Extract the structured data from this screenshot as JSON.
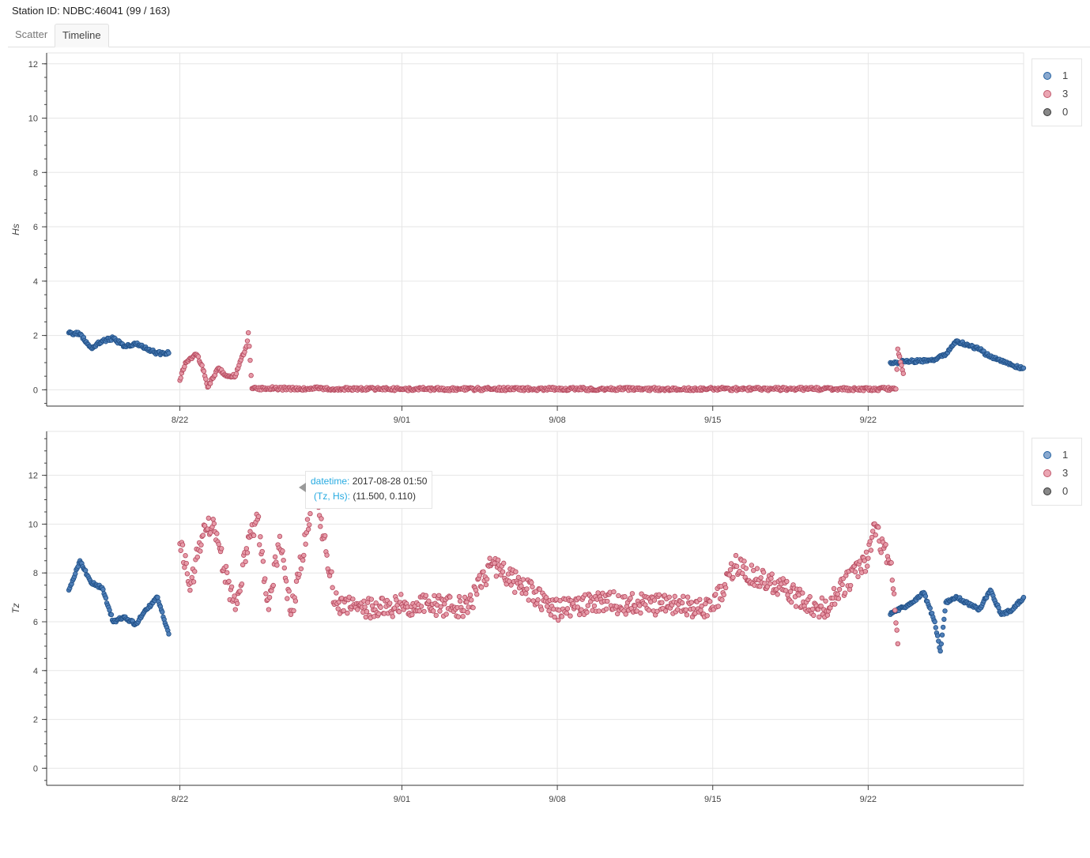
{
  "header": {
    "station_label": "Station ID: NDBC:46041 (99 / 163)"
  },
  "tabs": [
    {
      "label": "Scatter",
      "active": false
    },
    {
      "label": "Timeline",
      "active": true
    }
  ],
  "colors": {
    "flag_1": "#1f5fa0",
    "flag_3": "#c0566a",
    "flag_0": "#555555",
    "grid": "#e6e6e6"
  },
  "legend": [
    {
      "label": "1",
      "color": "#8aa9cf"
    },
    {
      "label": "3",
      "color": "#eba6b3"
    },
    {
      "label": "0",
      "color": "#888888"
    }
  ],
  "tooltip": {
    "datetime_key": "datetime:",
    "datetime_value": "2017-08-28 01:50",
    "pair_key": "(Tz, Hs):",
    "pair_value": "(11.500, 0.110)"
  },
  "chart_data": [
    {
      "type": "scatter",
      "ylabel": "Hs",
      "x_range": [
        "2017-08-16",
        "2017-09-29"
      ],
      "ylim": [
        -0.6,
        12.4
      ],
      "yticks": [
        0,
        2,
        4,
        6,
        8,
        10,
        12
      ],
      "xticks": [
        {
          "date": "2017-08-22",
          "label": "8/22"
        },
        {
          "date": "2017-09-01",
          "label": "9/01"
        },
        {
          "date": "2017-09-08",
          "label": "9/08"
        },
        {
          "date": "2017-09-15",
          "label": "9/15"
        },
        {
          "date": "2017-09-22",
          "label": "9/22"
        }
      ],
      "grid": true,
      "legend_position": "right",
      "series": [
        {
          "name": "1",
          "points": [
            [
              "2017-08-17",
              2.1
            ],
            [
              "2017-08-17T12:00",
              2.05
            ],
            [
              "2017-08-18",
              1.55
            ],
            [
              "2017-08-18T12:00",
              1.8
            ],
            [
              "2017-08-19",
              1.9
            ],
            [
              "2017-08-19T12:00",
              1.6
            ],
            [
              "2017-08-20",
              1.7
            ],
            [
              "2017-08-20T12:00",
              1.5
            ],
            [
              "2017-08-21",
              1.35
            ],
            [
              "2017-08-21T12:00",
              1.35
            ],
            [
              "2017-09-23",
              1.0
            ],
            [
              "2017-09-24",
              1.05
            ],
            [
              "2017-09-25",
              1.1
            ],
            [
              "2017-09-25T12:00",
              1.3
            ],
            [
              "2017-09-26",
              1.8
            ],
            [
              "2017-09-26T12:00",
              1.65
            ],
            [
              "2017-09-27",
              1.5
            ],
            [
              "2017-09-27T12:00",
              1.2
            ],
            [
              "2017-09-28",
              1.05
            ],
            [
              "2017-09-28T12:00",
              0.9
            ],
            [
              "2017-09-29",
              0.8
            ]
          ]
        },
        {
          "name": "3",
          "points": [
            [
              "2017-08-22",
              0.35
            ],
            [
              "2017-08-22T06:00",
              1.0
            ],
            [
              "2017-08-22T18:00",
              1.3
            ],
            [
              "2017-08-23",
              0.9
            ],
            [
              "2017-08-23T06:00",
              0.1
            ],
            [
              "2017-08-23T18:00",
              0.8
            ],
            [
              "2017-08-24",
              0.55
            ],
            [
              "2017-08-24T12:00",
              0.5
            ],
            [
              "2017-08-24T18:00",
              1.1
            ],
            [
              "2017-08-25",
              1.6
            ],
            [
              "2017-08-25T02:00",
              2.1
            ],
            [
              "2017-08-25T06:00",
              0.05
            ],
            [
              "2017-08-28",
              0.05
            ],
            [
              "2017-09-01",
              0.03
            ],
            [
              "2017-09-08",
              0.03
            ],
            [
              "2017-09-15",
              0.03
            ],
            [
              "2017-09-22",
              0.03
            ],
            [
              "2017-09-23T06:00",
              0.03
            ],
            [
              "2017-09-23T08:00",
              1.5
            ],
            [
              "2017-09-23T12:00",
              0.9
            ],
            [
              "2017-09-23T14:00",
              0.6
            ]
          ]
        }
      ]
    },
    {
      "type": "scatter",
      "ylabel": "Tz",
      "x_range": [
        "2017-08-16",
        "2017-09-29"
      ],
      "ylim": [
        -0.7,
        13.8
      ],
      "yticks": [
        0,
        2,
        4,
        6,
        8,
        10,
        12
      ],
      "xticks": [
        {
          "date": "2017-08-22",
          "label": "8/22"
        },
        {
          "date": "2017-09-01",
          "label": "9/01"
        },
        {
          "date": "2017-09-08",
          "label": "9/08"
        },
        {
          "date": "2017-09-15",
          "label": "9/15"
        },
        {
          "date": "2017-09-22",
          "label": "9/22"
        }
      ],
      "grid": true,
      "legend_position": "right",
      "series": [
        {
          "name": "1",
          "points": [
            [
              "2017-08-17",
              7.3
            ],
            [
              "2017-08-17T12:00",
              8.5
            ],
            [
              "2017-08-18",
              7.6
            ],
            [
              "2017-08-18T12:00",
              7.4
            ],
            [
              "2017-08-19",
              6.0
            ],
            [
              "2017-08-19T12:00",
              6.2
            ],
            [
              "2017-08-20",
              5.9
            ],
            [
              "2017-08-20T12:00",
              6.5
            ],
            [
              "2017-08-21",
              7.0
            ],
            [
              "2017-08-21T12:00",
              5.5
            ],
            [
              "2017-09-23",
              6.3
            ],
            [
              "2017-09-24",
              6.8
            ],
            [
              "2017-09-24T12:00",
              7.2
            ],
            [
              "2017-09-25",
              6.0
            ],
            [
              "2017-09-25T06:00",
              4.8
            ],
            [
              "2017-09-25T12:00",
              6.8
            ],
            [
              "2017-09-26",
              7.0
            ],
            [
              "2017-09-27",
              6.5
            ],
            [
              "2017-09-27T12:00",
              7.3
            ],
            [
              "2017-09-28",
              6.3
            ],
            [
              "2017-09-28T12:00",
              6.5
            ],
            [
              "2017-09-29",
              7.0
            ]
          ]
        },
        {
          "name": "3",
          "points": [
            [
              "2017-08-22",
              9.2
            ],
            [
              "2017-08-22T12:00",
              7.6
            ],
            [
              "2017-08-23",
              9.5
            ],
            [
              "2017-08-23T12:00",
              10.2
            ],
            [
              "2017-08-24",
              8.2
            ],
            [
              "2017-08-24T12:00",
              6.5
            ],
            [
              "2017-08-25",
              9.0
            ],
            [
              "2017-08-25T12:00",
              10.2
            ],
            [
              "2017-08-26",
              6.5
            ],
            [
              "2017-08-26T12:00",
              9.5
            ],
            [
              "2017-08-27",
              6.3
            ],
            [
              "2017-08-27T12:00",
              8.6
            ],
            [
              "2017-08-28T01:50",
              11.5
            ],
            [
              "2017-08-29",
              6.8
            ],
            [
              "2017-08-30",
              6.5
            ],
            [
              "2017-09-01",
              6.7
            ],
            [
              "2017-09-04",
              6.6
            ],
            [
              "2017-09-05",
              8.3
            ],
            [
              "2017-09-08",
              6.5
            ],
            [
              "2017-09-10",
              6.8
            ],
            [
              "2017-09-15",
              6.6
            ],
            [
              "2017-09-16",
              8.3
            ],
            [
              "2017-09-20",
              6.5
            ],
            [
              "2017-09-22",
              8.6
            ],
            [
              "2017-09-22T06:00",
              10.0
            ],
            [
              "2017-09-23",
              8.4
            ],
            [
              "2017-09-23T08:00",
              5.1
            ]
          ]
        }
      ]
    }
  ]
}
